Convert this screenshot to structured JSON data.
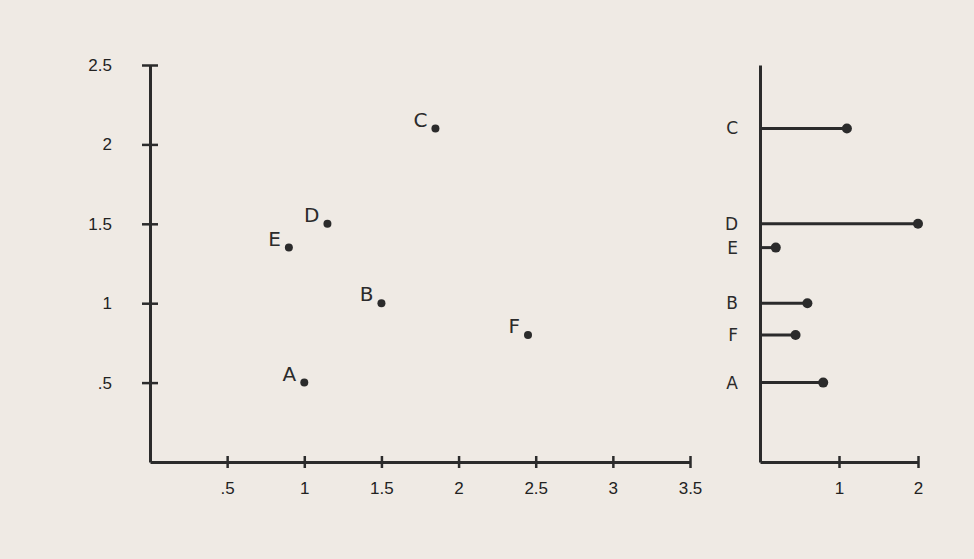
{
  "chart_data": [
    {
      "type": "scatter",
      "labels": [
        "A",
        "B",
        "C",
        "D",
        "E",
        "F"
      ],
      "x": [
        1.0,
        1.5,
        1.85,
        1.15,
        0.9,
        2.45
      ],
      "values": [
        0.5,
        1.0,
        2.1,
        1.5,
        1.35,
        0.8
      ],
      "color": "#2b2b2b",
      "xlim": [
        0,
        3.5
      ],
      "xticks": [
        {
          "value": 0.5,
          "label": ".5"
        },
        1,
        1.5,
        2,
        2.5,
        3,
        3.5
      ],
      "ylim": [
        0,
        2.5
      ],
      "yticks": [
        {
          "value": 0.5,
          "label": ".5"
        },
        1,
        1.5,
        2,
        2.5
      ],
      "grid": false
    },
    {
      "type": "lollipop",
      "orientation": "horizontal",
      "categories": [
        "C",
        "D",
        "E",
        "B",
        "F",
        "A"
      ],
      "y": [
        2.1,
        1.5,
        1.35,
        1.0,
        0.8,
        0.5
      ],
      "values": [
        1.1,
        2.0,
        0.2,
        0.6,
        0.45,
        0.8
      ],
      "color": "#2b2b2b",
      "xlim": [
        0,
        2
      ],
      "xticks": [
        1,
        2
      ],
      "ylim": [
        0,
        2.5
      ],
      "grid": false
    }
  ]
}
